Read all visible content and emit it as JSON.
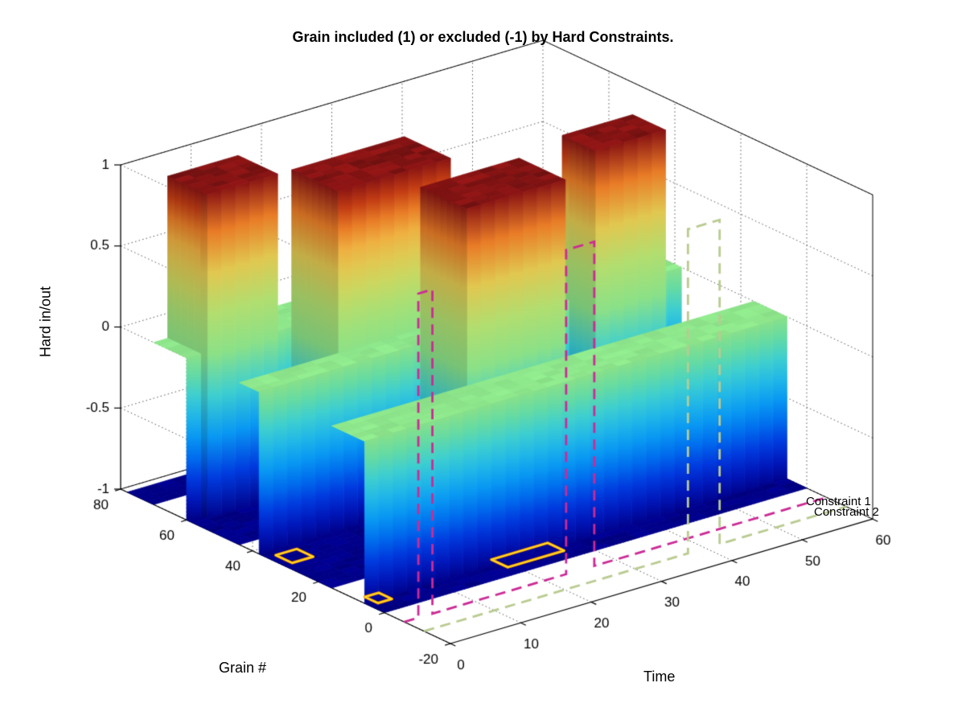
{
  "title": "Grain included (1) or excluded (-1) by Hard Constraints.",
  "axes": {
    "x": {
      "label": "Time",
      "ticks": [
        0,
        10,
        20,
        30,
        40,
        50,
        60
      ],
      "range": [
        0,
        60
      ]
    },
    "y": {
      "label": "Grain #",
      "ticks": [
        80,
        60,
        40,
        20,
        0,
        -20
      ],
      "range": [
        -20,
        80
      ]
    },
    "z": {
      "label": "Hard in/out",
      "ticks": [
        1,
        0.5,
        0,
        -0.5,
        -1
      ],
      "range": [
        -1,
        1
      ]
    }
  },
  "chart_data": {
    "type": "surface",
    "title": "Grain included (1) or excluded (-1) by Hard Constraints.",
    "xlabel": "Time",
    "ylabel": "Grain #",
    "zlabel": "Hard in/out",
    "grid": "dotted",
    "surface": {
      "t_range": [
        0,
        60
      ],
      "g_range": [
        0,
        78
      ],
      "cell": 2,
      "default_value": -1,
      "zero_bands": [
        [
          6,
          16
        ],
        [
          38,
          44
        ],
        [
          60,
          70
        ]
      ],
      "included_blocks": [
        {
          "g": [
            58,
            70
          ],
          "t": [
            2,
            12
          ],
          "value": 1
        },
        {
          "g": [
            44,
            58
          ],
          "t": [
            14,
            30
          ],
          "value": 1
        },
        {
          "g": [
            22,
            36
          ],
          "t": [
            22,
            36
          ],
          "value": 1
        },
        {
          "g": [
            30,
            40
          ],
          "t": [
            44,
            54
          ],
          "value": 1
        }
      ]
    },
    "colormap": [
      [
        -1.0,
        "#00008c"
      ],
      [
        -0.8,
        "#0028e0"
      ],
      [
        -0.55,
        "#0090ff"
      ],
      [
        -0.3,
        "#30d0e8"
      ],
      [
        -0.1,
        "#70e4a0"
      ],
      [
        0.0,
        "#8fe88c"
      ],
      [
        0.2,
        "#ace87a"
      ],
      [
        0.4,
        "#d8dc60"
      ],
      [
        0.6,
        "#f8c048"
      ],
      [
        0.75,
        "#f08028"
      ],
      [
        0.88,
        "#c83c14"
      ],
      [
        1.0,
        "#8c1414"
      ]
    ],
    "constraints": [
      {
        "label": "Constraint 1",
        "color": "#cc2a96",
        "g": -6,
        "base": -1,
        "pulses": [
          {
            "t": [
              2,
              4
            ],
            "top": 1
          },
          {
            "t": [
              23,
              27
            ],
            "top": 1
          }
        ]
      },
      {
        "label": "Constraint 2",
        "color": "#b9cb90",
        "g": -12,
        "base": -1,
        "pulses": [
          {
            "t": [
              37.5,
              42
            ],
            "top": 1
          }
        ]
      }
    ],
    "floor_contours": [
      {
        "t": [
          18,
          26
        ],
        "g": [
          1,
          6
        ],
        "outer": "#ff9900",
        "inner": "#ffee33"
      },
      {
        "t": [
          0,
          2
        ],
        "g": [
          2,
          6
        ],
        "outer": "#ff9900",
        "inner": "#ffee33"
      },
      {
        "t": [
          0,
          3
        ],
        "g": [
          28,
          33
        ],
        "outer": "#ff9900",
        "inner": "#ffee33"
      }
    ]
  }
}
